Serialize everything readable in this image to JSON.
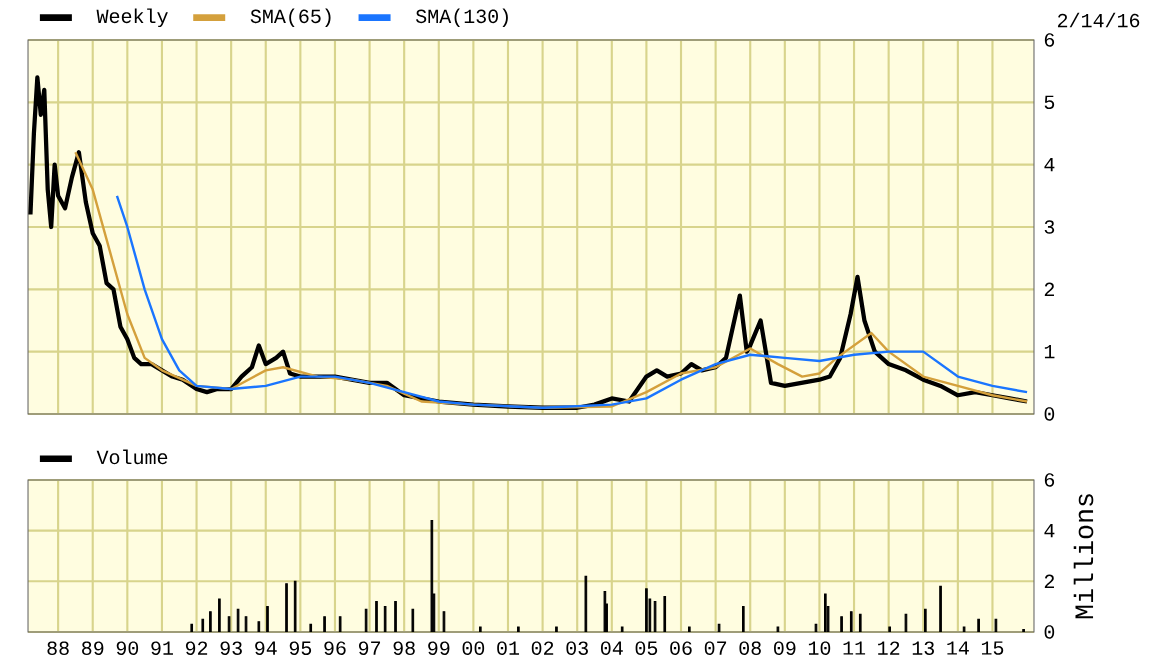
{
  "chart_data": [
    {
      "type": "line",
      "annotations": [
        "2/14/16"
      ],
      "xlim": [
        1987.13,
        2016.2
      ],
      "ylim": [
        0,
        6
      ],
      "xticks": [
        {
          "value": 1988,
          "label": null
        },
        {
          "value": 1989,
          "label": null
        },
        {
          "value": 1990,
          "label": null
        },
        {
          "value": 1991,
          "label": null
        },
        {
          "value": 1992,
          "label": null
        },
        {
          "value": 1993,
          "label": null
        },
        {
          "value": 1994,
          "label": null
        },
        {
          "value": 1995,
          "label": null
        },
        {
          "value": 1996,
          "label": null
        },
        {
          "value": 1997,
          "label": null
        },
        {
          "value": 1998,
          "label": null
        },
        {
          "value": 1999,
          "label": null
        },
        {
          "value": 2000,
          "label": null
        },
        {
          "value": 2001,
          "label": null
        },
        {
          "value": 2002,
          "label": null
        },
        {
          "value": 2003,
          "label": null
        },
        {
          "value": 2004,
          "label": null
        },
        {
          "value": 2005,
          "label": null
        },
        {
          "value": 2006,
          "label": null
        },
        {
          "value": 2007,
          "label": null
        },
        {
          "value": 2008,
          "label": null
        },
        {
          "value": 2009,
          "label": null
        },
        {
          "value": 2010,
          "label": null
        },
        {
          "value": 2011,
          "label": null
        },
        {
          "value": 2012,
          "label": null
        },
        {
          "value": 2013,
          "label": null
        },
        {
          "value": 2014,
          "label": null
        },
        {
          "value": 2015,
          "label": null
        }
      ],
      "yticks": [
        0,
        1,
        2,
        3,
        4,
        5,
        6
      ],
      "grid": true,
      "legend": "top left",
      "tick_labels": "y",
      "series": [
        {
          "name": "Weekly",
          "color": "#000000",
          "x": [
            1987.2,
            1987.3,
            1987.4,
            1987.5,
            1987.6,
            1987.7,
            1987.8,
            1987.9,
            1988.0,
            1988.2,
            1988.4,
            1988.6,
            1988.8,
            1989.0,
            1989.2,
            1989.4,
            1989.6,
            1989.8,
            1990.0,
            1990.2,
            1990.4,
            1990.7,
            1991.0,
            1991.3,
            1991.6,
            1992.0,
            1992.3,
            1992.6,
            1993.0,
            1993.3,
            1993.6,
            1993.8,
            1994.0,
            1994.3,
            1994.5,
            1994.7,
            1995.0,
            1995.5,
            1996.0,
            1996.5,
            1997.0,
            1997.5,
            1998.0,
            1998.5,
            1999.0,
            2000.0,
            2001.0,
            2002.0,
            2003.0,
            2003.5,
            2004.0,
            2004.5,
            2005.0,
            2005.3,
            2005.6,
            2006.0,
            2006.3,
            2006.6,
            2007.0,
            2007.3,
            2007.7,
            2007.9,
            2008.0,
            2008.3,
            2008.6,
            2009.0,
            2009.5,
            2010.0,
            2010.3,
            2010.6,
            2010.9,
            2011.1,
            2011.3,
            2011.6,
            2012.0,
            2012.5,
            2013.0,
            2013.5,
            2014.0,
            2014.5,
            2015.0,
            2015.5,
            2016.0
          ],
          "values": [
            3.2,
            4.5,
            5.4,
            4.8,
            5.2,
            3.6,
            3.0,
            4.0,
            3.5,
            3.3,
            3.8,
            4.2,
            3.4,
            2.9,
            2.7,
            2.1,
            2.0,
            1.4,
            1.2,
            0.9,
            0.8,
            0.8,
            0.7,
            0.6,
            0.55,
            0.4,
            0.35,
            0.4,
            0.4,
            0.6,
            0.75,
            1.1,
            0.8,
            0.9,
            1.0,
            0.65,
            0.6,
            0.6,
            0.6,
            0.55,
            0.5,
            0.5,
            0.3,
            0.25,
            0.2,
            0.15,
            0.12,
            0.1,
            0.1,
            0.15,
            0.25,
            0.2,
            0.6,
            0.7,
            0.6,
            0.65,
            0.8,
            0.7,
            0.75,
            0.9,
            1.9,
            1.0,
            1.1,
            1.5,
            0.5,
            0.45,
            0.5,
            0.55,
            0.6,
            0.9,
            1.6,
            2.2,
            1.5,
            1.0,
            0.8,
            0.7,
            0.55,
            0.45,
            0.3,
            0.35,
            0.3,
            0.25,
            0.2
          ]
        },
        {
          "name": "SMA(65)",
          "color": "#d4a03c",
          "x": [
            1988.5,
            1989.0,
            1989.5,
            1990.0,
            1990.5,
            1991.0,
            1992.0,
            1993.0,
            1994.0,
            1994.5,
            1995.5,
            1996.5,
            1997.5,
            1998.5,
            2000.0,
            2002.0,
            2004.0,
            2005.0,
            2006.0,
            2007.0,
            2008.0,
            2008.8,
            2009.5,
            2010.0,
            2010.5,
            2011.5,
            2012.0,
            2013.0,
            2014.0,
            2015.0,
            2016.0
          ],
          "values": [
            4.2,
            3.6,
            2.6,
            1.6,
            0.9,
            0.7,
            0.45,
            0.4,
            0.7,
            0.75,
            0.6,
            0.55,
            0.45,
            0.2,
            0.15,
            0.1,
            0.12,
            0.35,
            0.65,
            0.75,
            1.05,
            0.8,
            0.6,
            0.65,
            0.9,
            1.3,
            1.0,
            0.6,
            0.45,
            0.3,
            0.2
          ]
        },
        {
          "name": "SMA(130)",
          "color": "#1a75ff",
          "x": [
            1989.7,
            1990.0,
            1990.5,
            1991.0,
            1991.5,
            1992.0,
            1993.0,
            1994.0,
            1995.0,
            1996.0,
            1997.0,
            1998.0,
            1999.0,
            2000.0,
            2002.0,
            2004.0,
            2005.0,
            2006.0,
            2007.0,
            2008.0,
            2009.0,
            2010.0,
            2011.0,
            2012.0,
            2013.0,
            2014.0,
            2015.0,
            2016.0
          ],
          "values": [
            3.5,
            3.0,
            2.0,
            1.2,
            0.7,
            0.45,
            0.4,
            0.45,
            0.6,
            0.6,
            0.5,
            0.35,
            0.2,
            0.15,
            0.1,
            0.15,
            0.25,
            0.55,
            0.8,
            0.95,
            0.9,
            0.85,
            0.95,
            1.0,
            1.0,
            0.6,
            0.45,
            0.35
          ]
        }
      ]
    },
    {
      "type": "bar",
      "ylabel": "Millions",
      "xlim": [
        1987.13,
        2016.2
      ],
      "ylim": [
        0,
        6
      ],
      "xticks": [
        {
          "value": 1988,
          "label": "88"
        },
        {
          "value": 1989,
          "label": "89"
        },
        {
          "value": 1990,
          "label": "90"
        },
        {
          "value": 1991,
          "label": "91"
        },
        {
          "value": 1992,
          "label": "92"
        },
        {
          "value": 1993,
          "label": "93"
        },
        {
          "value": 1994,
          "label": "94"
        },
        {
          "value": 1995,
          "label": "95"
        },
        {
          "value": 1996,
          "label": "96"
        },
        {
          "value": 1997,
          "label": "97"
        },
        {
          "value": 1998,
          "label": "98"
        },
        {
          "value": 1999,
          "label": "99"
        },
        {
          "value": 2000,
          "label": "00"
        },
        {
          "value": 2001,
          "label": "01"
        },
        {
          "value": 2002,
          "label": "02"
        },
        {
          "value": 2003,
          "label": "03"
        },
        {
          "value": 2004,
          "label": "04"
        },
        {
          "value": 2005,
          "label": "05"
        },
        {
          "value": 2006,
          "label": "06"
        },
        {
          "value": 2007,
          "label": "07"
        },
        {
          "value": 2008,
          "label": "08"
        },
        {
          "value": 2009,
          "label": "09"
        },
        {
          "value": 2010,
          "label": "10"
        },
        {
          "value": 2011,
          "label": "11"
        },
        {
          "value": 2012,
          "label": "12"
        },
        {
          "value": 2013,
          "label": "13"
        },
        {
          "value": 2014,
          "label": "14"
        },
        {
          "value": 2015,
          "label": "15"
        }
      ],
      "yticks": [
        0,
        2,
        4,
        6
      ],
      "grid": true,
      "legend": "top left",
      "series": [
        {
          "name": "Volume",
          "color": "#000000",
          "x": [
            1991.86,
            1992.18,
            1992.4,
            1992.66,
            1992.94,
            1993.2,
            1993.43,
            1993.8,
            1994.05,
            1994.6,
            1994.85,
            1995.3,
            1995.7,
            1996.15,
            1996.9,
            1997.2,
            1997.45,
            1997.75,
            1998.25,
            1998.8,
            1998.86,
            1999.15,
            2000.2,
            2001.3,
            2002.4,
            2003.25,
            2003.8,
            2003.85,
            2004.3,
            2005.0,
            2005.1,
            2005.25,
            2005.53,
            2006.24,
            2007.1,
            2007.8,
            2008.8,
            2009.9,
            2010.17,
            2010.25,
            2010.64,
            2010.92,
            2011.18,
            2012.03,
            2012.5,
            2013.06,
            2013.5,
            2014.18,
            2014.6,
            2015.1,
            2015.9
          ],
          "values": [
            0.3,
            0.5,
            0.8,
            1.3,
            0.6,
            0.9,
            0.6,
            0.4,
            1.0,
            1.9,
            2.0,
            0.3,
            0.6,
            0.6,
            0.9,
            1.2,
            1.0,
            1.2,
            0.9,
            4.4,
            1.5,
            0.8,
            0.2,
            0.2,
            0.2,
            2.2,
            1.6,
            1.1,
            0.2,
            1.7,
            1.3,
            1.2,
            1.4,
            0.2,
            0.3,
            1.0,
            0.2,
            0.3,
            1.5,
            1.0,
            0.6,
            0.8,
            0.7,
            0.2,
            0.7,
            0.9,
            1.8,
            0.2,
            0.5,
            0.5,
            0.1
          ]
        }
      ]
    }
  ]
}
